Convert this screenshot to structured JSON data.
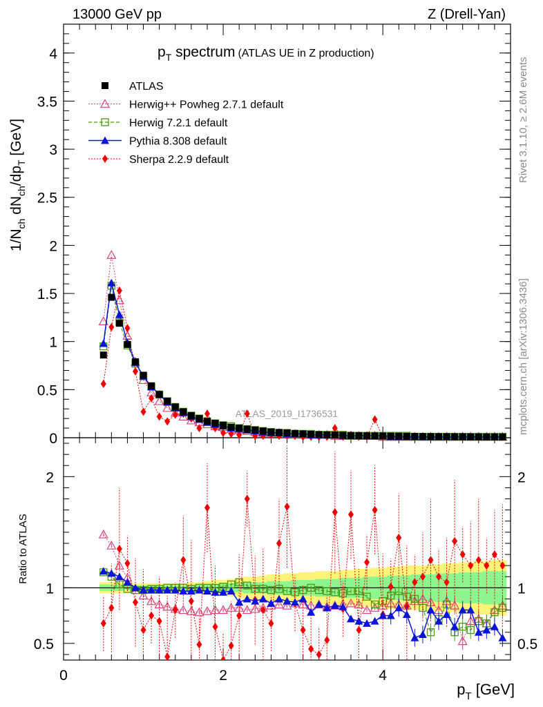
{
  "header": {
    "left": "13000 GeV pp",
    "right": "Z (Drell-Yan)"
  },
  "title": {
    "main": "p",
    "main_sub": "T",
    "main_rest": " spectrum",
    "sub": "(ATLAS UE in Z production)"
  },
  "watermark": "ATLAS_2019_I1736531",
  "side_text": {
    "rivet": "Rivet 3.1.10, ≥ 2.6M events",
    "mcplots": "mcplots.cern.ch [arXiv:1306.3436]"
  },
  "ylabel_main": {
    "t1": "1/N",
    "t1s": "ch",
    "t2": " dN",
    "t2s": "ch",
    "t3": "/dp",
    "t3s": "T",
    "t4": " [GeV]"
  },
  "ylabel_ratio": "Ratio to ATLAS",
  "xlabel": {
    "p": "p",
    "sub": "T",
    "rest": " [GeV]"
  },
  "legend": [
    {
      "label": "ATLAS",
      "key": "atlas"
    },
    {
      "label": "Herwig++ Powheg 2.7.1 default",
      "key": "herwigpp"
    },
    {
      "label": "Herwig 7.2.1 default",
      "key": "herwig7"
    },
    {
      "label": "Pythia 8.308 default",
      "key": "pythia"
    },
    {
      "label": "Sherpa 2.2.9 default",
      "key": "sherpa"
    }
  ],
  "colors": {
    "atlas": "#000000",
    "herwigpp": "#d6457b",
    "herwig7": "#4a9a12",
    "pythia": "#0a14d8",
    "sherpa": "#ee0000",
    "band_yellow": "#fff47a",
    "band_green": "#8ff58f"
  },
  "chart_data": {
    "type": "line",
    "x": [
      0.5,
      0.6,
      0.7,
      0.8,
      0.9,
      1.0,
      1.1,
      1.2,
      1.3,
      1.4,
      1.5,
      1.6,
      1.7,
      1.8,
      1.9,
      2.0,
      2.1,
      2.2,
      2.3,
      2.4,
      2.5,
      2.6,
      2.7,
      2.8,
      2.9,
      3.0,
      3.1,
      3.2,
      3.3,
      3.4,
      3.5,
      3.6,
      3.7,
      3.8,
      3.9,
      4.0,
      4.1,
      4.2,
      4.3,
      4.4,
      4.5,
      4.6,
      4.7,
      4.8,
      4.9,
      5.0,
      5.1,
      5.2,
      5.3,
      5.4,
      5.5
    ],
    "main": {
      "xlim": [
        0,
        5.6
      ],
      "ylim": [
        0,
        4.3
      ],
      "yticks": [
        0,
        0.5,
        1,
        1.5,
        2,
        2.5,
        3,
        3.5,
        4
      ],
      "ytick_labels": [
        "0",
        "0.5",
        "1",
        "1.5",
        "2",
        "2.5",
        "3",
        "3.5",
        "4"
      ],
      "series": [
        {
          "key": "atlas",
          "name": "ATLAS",
          "values": [
            0.86,
            1.46,
            1.19,
            0.97,
            0.79,
            0.65,
            0.54,
            0.45,
            0.38,
            0.32,
            0.27,
            0.23,
            0.2,
            0.17,
            0.15,
            0.13,
            0.11,
            0.1,
            0.09,
            0.08,
            0.07,
            0.06,
            0.055,
            0.05,
            0.045,
            0.04,
            0.036,
            0.033,
            0.03,
            0.028,
            0.026,
            0.024,
            0.022,
            0.02,
            0.019,
            0.018,
            0.017,
            0.016,
            0.015,
            0.014,
            0.013,
            0.012,
            0.011,
            0.011,
            0.01,
            0.01,
            0.009,
            0.009,
            0.008,
            0.008,
            0.008
          ]
        },
        {
          "key": "herwigpp",
          "name": "Herwig++ Powheg 2.7.1 default",
          "values": [
            1.21,
            1.9,
            1.43,
            1.06,
            0.79,
            0.6,
            0.47,
            0.38,
            0.31,
            0.26,
            0.22,
            0.18,
            0.16,
            0.14,
            0.12,
            0.11,
            0.09,
            0.08,
            0.07,
            0.06,
            0.05,
            0.05,
            0.05,
            0.04,
            0.04,
            0.03,
            0.03,
            0.03,
            0.03,
            0.02,
            0.02,
            0.02,
            0.02,
            0.02,
            0.02,
            0.01,
            0.01,
            0.01,
            0.01,
            0.01,
            0.01,
            0.01,
            0.01,
            0.01,
            0.01,
            0.01,
            0.01,
            0.01,
            0.01,
            0.01,
            0.01
          ]
        },
        {
          "key": "herwig7",
          "name": "Herwig 7.2.1 default",
          "values": [
            0.95,
            1.58,
            1.2,
            0.96,
            0.77,
            0.64,
            0.53,
            0.45,
            0.38,
            0.32,
            0.27,
            0.23,
            0.2,
            0.17,
            0.15,
            0.13,
            0.12,
            0.1,
            0.09,
            0.08,
            0.07,
            0.06,
            0.05,
            0.05,
            0.04,
            0.04,
            0.04,
            0.03,
            0.03,
            0.03,
            0.03,
            0.02,
            0.02,
            0.02,
            0.02,
            0.02,
            0.02,
            0.02,
            0.02,
            0.01,
            0.01,
            0.01,
            0.01,
            0.01,
            0.01,
            0.01,
            0.01,
            0.01,
            0.01,
            0.01,
            0.01
          ]
        },
        {
          "key": "pythia",
          "name": "Pythia 8.308 default",
          "values": [
            0.98,
            1.61,
            1.28,
            0.99,
            0.78,
            0.64,
            0.53,
            0.45,
            0.37,
            0.31,
            0.26,
            0.22,
            0.19,
            0.16,
            0.14,
            0.12,
            0.1,
            0.09,
            0.08,
            0.07,
            0.06,
            0.05,
            0.05,
            0.04,
            0.04,
            0.04,
            0.03,
            0.03,
            0.03,
            0.03,
            0.02,
            0.02,
            0.02,
            0.02,
            0.02,
            0.02,
            0.01,
            0.01,
            0.01,
            0.01,
            0.01,
            0.01,
            0.01,
            0.01,
            0.01,
            0.01,
            0.01,
            0.01,
            0.01,
            0.01,
            0.01
          ]
        },
        {
          "key": "sherpa",
          "name": "Sherpa 2.2.9 default",
          "values": [
            0.56,
            1.15,
            1.53,
            1.14,
            0.69,
            0.27,
            0.41,
            0.22,
            0.17,
            0.24,
            0.25,
            0.2,
            0.1,
            0.25,
            0.1,
            0.05,
            0.04,
            0.03,
            0.25,
            0.02,
            0.02,
            0.03,
            0.02,
            0.02,
            0.02,
            0.01,
            0.01,
            0.01,
            0.01,
            0.1,
            0.01,
            0.03,
            0.01,
            0.01,
            0.19,
            0.01,
            0.01,
            0.01,
            0.01,
            0.01,
            0.01,
            0.01,
            0.01,
            0.01,
            0.01,
            0.01,
            0.01,
            0.01,
            0.01,
            0.01,
            0.01
          ]
        }
      ]
    },
    "ratio": {
      "ylim": [
        0.35,
        2.35
      ],
      "yticks": [
        0.5,
        1,
        2
      ],
      "ytick_labels": [
        "0.5",
        "1",
        "2"
      ],
      "xticks": [
        0,
        2,
        4
      ],
      "xtick_labels": [
        "0",
        "2",
        "4"
      ],
      "band_yellow_upper": [
        1.05,
        1.05,
        1.05,
        1.05,
        1.04,
        1.04,
        1.04,
        1.04,
        1.04,
        1.04,
        1.04,
        1.05,
        1.05,
        1.06,
        1.07,
        1.07,
        1.08,
        1.09,
        1.1,
        1.1,
        1.11,
        1.12,
        1.12,
        1.13,
        1.13,
        1.14,
        1.14,
        1.15,
        1.15,
        1.15,
        1.16,
        1.16,
        1.17,
        1.17,
        1.18,
        1.18,
        1.19,
        1.19,
        1.2,
        1.2,
        1.2,
        1.21,
        1.21,
        1.22,
        1.22,
        1.23,
        1.23,
        1.24,
        1.24,
        1.25,
        1.25
      ],
      "band_green_upper": [
        1.03,
        1.03,
        1.03,
        1.02,
        1.02,
        1.02,
        1.02,
        1.02,
        1.02,
        1.02,
        1.02,
        1.02,
        1.03,
        1.03,
        1.03,
        1.04,
        1.04,
        1.04,
        1.05,
        1.05,
        1.05,
        1.06,
        1.06,
        1.06,
        1.07,
        1.07,
        1.07,
        1.08,
        1.08,
        1.08,
        1.09,
        1.09,
        1.09,
        1.1,
        1.1,
        1.1,
        1.11,
        1.11,
        1.11,
        1.12,
        1.12,
        1.12,
        1.13,
        1.13,
        1.13,
        1.14,
        1.14,
        1.14,
        1.15,
        1.15,
        1.15
      ],
      "series": [
        {
          "key": "herwigpp",
          "name": "Herwig++ Powheg 2.7.1 default",
          "values": [
            1.48,
            1.38,
            1.2,
            1.09,
            0.98,
            0.93,
            0.88,
            0.85,
            0.83,
            0.81,
            0.8,
            0.79,
            0.78,
            0.79,
            0.8,
            0.8,
            0.82,
            0.82,
            0.8,
            0.81,
            0.82,
            0.84,
            0.85,
            0.84,
            0.86,
            0.85,
            0.84,
            0.85,
            0.83,
            0.84,
            0.85,
            0.86,
            0.85,
            0.8,
            0.82,
            0.84,
            0.86,
            0.85,
            0.84,
            0.88,
            0.9,
            0.87,
            0.8,
            0.88,
            0.84,
            0.52,
            0.7,
            0.72,
            0.68,
            0.8,
            0.84
          ]
        },
        {
          "key": "herwig7",
          "name": "Herwig 7.2.1 default",
          "values": [
            1.14,
            1.1,
            1.03,
            0.99,
            0.98,
            0.98,
            0.99,
            0.99,
            1.0,
            1.0,
            1.0,
            0.99,
            1.0,
            1.0,
            1.0,
            1.01,
            1.03,
            1.05,
            1.02,
            0.99,
            0.99,
            0.98,
            0.99,
            0.97,
            0.96,
            0.98,
            1.0,
            0.98,
            0.97,
            0.96,
            0.95,
            0.97,
            0.97,
            0.92,
            0.85,
            0.88,
            0.93,
            0.97,
            0.92,
            0.9,
            0.82,
            0.6,
            0.72,
            0.85,
            0.6,
            0.65,
            0.62,
            0.7,
            0.68,
            0.78,
            0.82
          ]
        },
        {
          "key": "pythia",
          "name": "Pythia 8.308 default",
          "values": [
            1.15,
            1.13,
            1.1,
            1.05,
            1.0,
            0.98,
            0.98,
            0.98,
            0.98,
            0.98,
            0.97,
            0.97,
            0.98,
            0.97,
            0.96,
            0.96,
            0.97,
            0.87,
            0.9,
            0.88,
            0.9,
            0.86,
            0.9,
            0.88,
            0.87,
            0.9,
            0.78,
            0.85,
            0.82,
            0.84,
            0.83,
            0.72,
            0.7,
            0.68,
            0.7,
            0.75,
            0.75,
            0.82,
            0.76,
            0.55,
            0.58,
            0.8,
            0.7,
            0.76,
            0.65,
            0.8,
            0.8,
            0.6,
            0.62,
            0.65,
            0.55
          ]
        },
        {
          "key": "sherpa",
          "name": "Sherpa 2.2.9 default",
          "values": [
            0.68,
            0.82,
            1.35,
            1.22,
            0.87,
            0.62,
            0.75,
            0.7,
            0.38,
            0.8,
            1.25,
            0.88,
            0.49,
            1.72,
            0.65,
            0.35,
            0.48,
            0.75,
            1.8,
            0.89,
            0.8,
            0.68,
            1.4,
            1.73,
            0.86,
            0.62,
            0.45,
            0.4,
            0.53,
            1.68,
            0.81,
            1.66,
            0.62,
            1.23,
            1.7,
            0.76,
            1.01,
            1.45,
            0.83,
            1.05,
            1.1,
            1.25,
            1.1,
            1.05,
            1.42,
            1.3,
            1.2,
            1.25,
            1.2,
            1.3,
            1.2
          ]
        }
      ]
    }
  }
}
